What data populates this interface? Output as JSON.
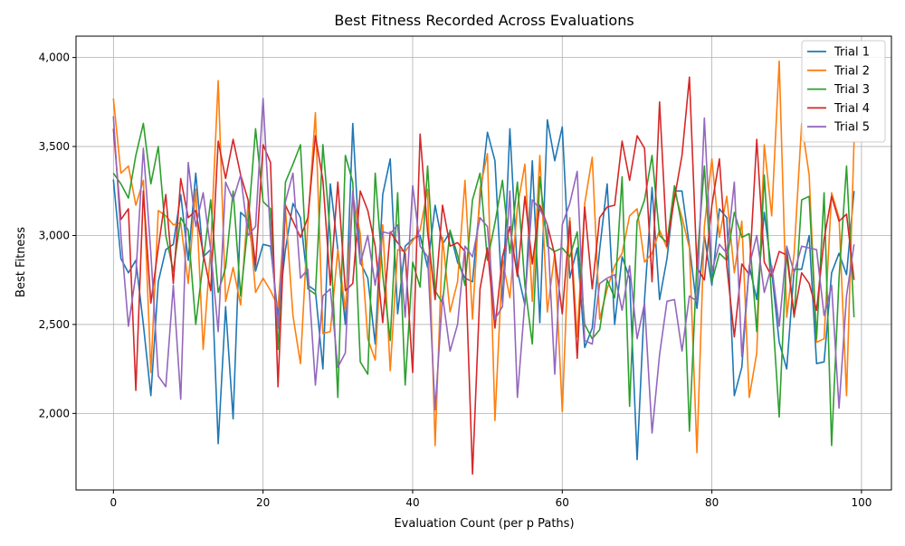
{
  "chart_data": {
    "type": "line",
    "title": "Best Fitness Recorded Across Evaluations",
    "xlabel": "Evaluation Count (per p Paths)",
    "ylabel": "Best Fitness",
    "xlim": [
      -5,
      104
    ],
    "ylim": [
      1570,
      4120
    ],
    "x_ticks": [
      0,
      20,
      40,
      60,
      80,
      100
    ],
    "x_tick_labels": [
      "0",
      "20",
      "40",
      "60",
      "80",
      "100"
    ],
    "y_ticks": [
      2000,
      2500,
      3000,
      3500,
      4000
    ],
    "y_tick_labels": [
      "2,000",
      "2,500",
      "3,000",
      "3,500",
      "4,000"
    ],
    "grid": true,
    "legend_position": "top-right",
    "x": [
      0,
      1,
      2,
      3,
      4,
      5,
      6,
      7,
      8,
      9,
      10,
      11,
      12,
      13,
      14,
      15,
      16,
      17,
      18,
      19,
      20,
      21,
      22,
      23,
      24,
      25,
      26,
      27,
      28,
      29,
      30,
      31,
      32,
      33,
      34,
      35,
      36,
      37,
      38,
      39,
      40,
      41,
      42,
      43,
      44,
      45,
      46,
      47,
      48,
      49,
      50,
      51,
      52,
      53,
      54,
      55,
      56,
      57,
      58,
      59,
      60,
      61,
      62,
      63,
      64,
      65,
      66,
      67,
      68,
      69,
      70,
      71,
      72,
      73,
      74,
      75,
      76,
      77,
      78,
      79,
      80,
      81,
      82,
      83,
      84,
      85,
      86,
      87,
      88,
      89,
      90,
      91,
      92,
      93,
      94,
      95,
      96,
      97,
      98,
      99
    ],
    "series": [
      {
        "name": "Trial 1",
        "color": "#1f77b4",
        "values": [
          3315,
          2870,
          2790,
          2860,
          2500,
          2100,
          2740,
          2920,
          2950,
          3230,
          2860,
          3350,
          2880,
          2920,
          1830,
          2600,
          1970,
          3130,
          3090,
          2800,
          2950,
          2940,
          2550,
          2920,
          3180,
          3100,
          2720,
          2690,
          2250,
          3290,
          2920,
          2500,
          3630,
          2850,
          2760,
          2390,
          3230,
          3430,
          2560,
          2940,
          2980,
          3000,
          2820,
          3170,
          2950,
          3020,
          2850,
          2760,
          2740,
          3200,
          3580,
          3420,
          2620,
          3600,
          2800,
          2610,
          3420,
          2510,
          3650,
          3420,
          3610,
          2760,
          2930,
          2370,
          2480,
          2920,
          3290,
          2500,
          2880,
          2760,
          1740,
          2640,
          3270,
          2640,
          2870,
          3250,
          3250,
          2940,
          2590,
          3000,
          2720,
          3150,
          3100,
          2100,
          2260,
          2830,
          2640,
          3130,
          2800,
          2400,
          2250,
          2810,
          2810,
          3000,
          2280,
          2290,
          2790,
          2900,
          2780,
          3250
        ]
      },
      {
        "name": "Trial 2",
        "color": "#ff7f0e",
        "values": [
          3770,
          3350,
          3390,
          3170,
          3310,
          2230,
          3140,
          3110,
          3060,
          3070,
          2730,
          3260,
          2360,
          2930,
          3870,
          2630,
          2820,
          2610,
          3180,
          2680,
          2760,
          2690,
          2600,
          3150,
          2550,
          2280,
          3070,
          3690,
          2450,
          2460,
          2920,
          2580,
          3230,
          3010,
          2420,
          2300,
          3060,
          2240,
          2920,
          2910,
          2970,
          3030,
          3260,
          1820,
          2990,
          2570,
          2740,
          3310,
          2530,
          3260,
          3460,
          1960,
          2860,
          2650,
          3160,
          3400,
          2630,
          3450,
          2570,
          2900,
          2010,
          3100,
          2430,
          3180,
          3440,
          2530,
          2700,
          2830,
          2900,
          3110,
          3150,
          2850,
          2900,
          3030,
          2930,
          3250,
          3100,
          2930,
          1780,
          3050,
          3430,
          2990,
          3220,
          2790,
          3080,
          2090,
          2340,
          3510,
          3110,
          3980,
          2540,
          2900,
          3630,
          3340,
          2400,
          2420,
          3240,
          3100,
          2100,
          3530
        ]
      },
      {
        "name": "Trial 3",
        "color": "#2ca02c",
        "values": [
          3350,
          3290,
          3210,
          3450,
          3630,
          3290,
          3500,
          3000,
          2800,
          3100,
          3030,
          2500,
          2850,
          3200,
          2680,
          2820,
          3250,
          2660,
          3060,
          3600,
          3190,
          3150,
          2360,
          3300,
          3400,
          3510,
          2700,
          2670,
          3510,
          3000,
          2090,
          3450,
          3300,
          2290,
          2220,
          3350,
          2780,
          2410,
          3240,
          2160,
          2850,
          2710,
          3390,
          2690,
          2620,
          3030,
          2890,
          2720,
          3200,
          3350,
          2860,
          3070,
          3310,
          2900,
          3300,
          2720,
          2390,
          3330,
          2940,
          2910,
          2930,
          2880,
          3020,
          2500,
          2420,
          2470,
          2750,
          2650,
          3330,
          2040,
          3080,
          3200,
          3450,
          3000,
          2960,
          3280,
          3050,
          1900,
          2850,
          3390,
          2740,
          2900,
          2860,
          3130,
          2990,
          3010,
          2460,
          3340,
          2640,
          1980,
          2930,
          2540,
          3200,
          3220,
          2420,
          3240,
          1820,
          2760,
          3390,
          2540
        ]
      },
      {
        "name": "Trial 4",
        "color": "#d62728",
        "values": [
          3600,
          3090,
          3150,
          2130,
          3250,
          2620,
          2930,
          3230,
          2730,
          3320,
          3100,
          3140,
          2900,
          2690,
          3530,
          3320,
          3540,
          3340,
          3200,
          2830,
          3510,
          3410,
          2150,
          3170,
          3080,
          2990,
          3100,
          3560,
          3310,
          2720,
          3300,
          2690,
          2730,
          3250,
          3140,
          2940,
          2510,
          3020,
          2960,
          2900,
          2230,
          3570,
          3020,
          2640,
          3170,
          2940,
          2960,
          2910,
          1660,
          2700,
          2930,
          2480,
          2880,
          3050,
          2770,
          3220,
          2840,
          3170,
          3060,
          2890,
          2560,
          3080,
          2310,
          3160,
          2700,
          3100,
          3160,
          3170,
          3530,
          3310,
          3560,
          3490,
          2740,
          3750,
          2940,
          3210,
          3450,
          3890,
          2820,
          2750,
          3170,
          3430,
          2830,
          2430,
          2840,
          2780,
          3540,
          2850,
          2770,
          2910,
          2890,
          2550,
          2790,
          2730,
          2580,
          2980,
          3220,
          3080,
          3120,
          2750
        ]
      },
      {
        "name": "Trial 5",
        "color": "#9467bd",
        "values": [
          3670,
          3000,
          2490,
          2780,
          3490,
          2900,
          2210,
          2150,
          2720,
          2080,
          3410,
          3050,
          3240,
          2920,
          2460,
          3300,
          3200,
          3340,
          3000,
          3050,
          3770,
          2990,
          2480,
          3190,
          3350,
          2760,
          2810,
          2160,
          2660,
          2700,
          2260,
          2340,
          3250,
          2840,
          3000,
          2720,
          3020,
          3010,
          3060,
          2540,
          3280,
          2940,
          2880,
          2020,
          2660,
          2350,
          2500,
          2940,
          2880,
          3100,
          3050,
          2530,
          2600,
          3250,
          2090,
          2630,
          3200,
          3150,
          3060,
          2220,
          3060,
          3180,
          3360,
          2410,
          2390,
          2730,
          2760,
          2780,
          2580,
          2830,
          2420,
          2620,
          1890,
          2330,
          2630,
          2640,
          2350,
          2660,
          2630,
          3660,
          2800,
          2950,
          2900,
          3300,
          2320,
          2830,
          3000,
          2680,
          2830,
          2490,
          2940,
          2790,
          2940,
          2930,
          2920,
          2550,
          2720,
          2030,
          2660,
          2950
        ]
      }
    ]
  }
}
